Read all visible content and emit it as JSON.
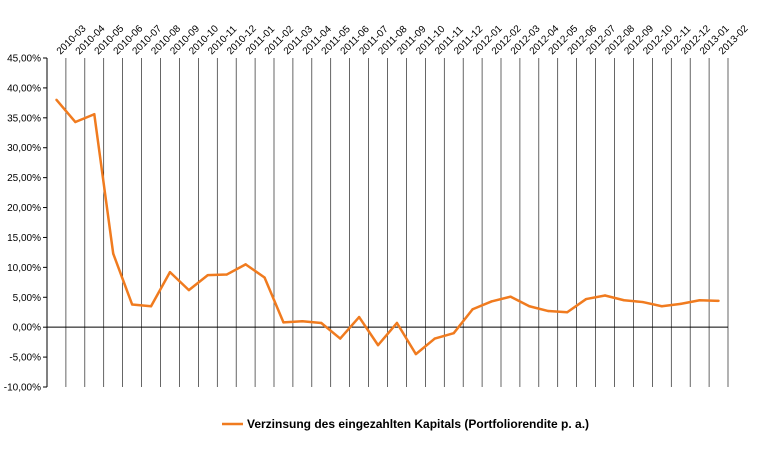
{
  "chart_data": {
    "type": "line",
    "title": "",
    "xlabel": "",
    "ylabel": "",
    "ylim": [
      -10,
      45
    ],
    "y_tick_step": 5,
    "y_tick_labels": [
      "45,00%",
      "40,00%",
      "35,00%",
      "30,00%",
      "25,00%",
      "20,00%",
      "15,00%",
      "10,00%",
      "5,00%",
      "0,00%",
      "-5,00%",
      "-10,00%"
    ],
    "grid": "vertical",
    "legend_position": "bottom",
    "categories": [
      "2010-03",
      "2010-04",
      "2010-05",
      "2010-06",
      "2010-07",
      "2010-08",
      "2010-09",
      "2010-10",
      "2010-11",
      "2010-12",
      "2011-01",
      "2011-02",
      "2011-03",
      "2011-04",
      "2011-05",
      "2011-06",
      "2011-07",
      "2011-08",
      "2011-09",
      "2011-10",
      "2011-11",
      "2011-12",
      "2012-01",
      "2012-02",
      "2012-03",
      "2012-04",
      "2012-05",
      "2012-06",
      "2012-07",
      "2012-08",
      "2012-09",
      "2012-10",
      "2012-11",
      "2012-12",
      "2013-01",
      "2013-02"
    ],
    "series": [
      {
        "name": "Verzinsung des eingezahlten Kapitals (Portfoliorendite p. a.)",
        "color": "#f07b1f",
        "values": [
          38.0,
          34.3,
          35.6,
          12.3,
          3.8,
          3.5,
          9.2,
          6.2,
          8.7,
          8.8,
          10.5,
          8.3,
          0.8,
          1.0,
          0.7,
          -1.9,
          1.7,
          -3.0,
          0.7,
          -4.5,
          -1.9,
          -1.0,
          3.0,
          4.3,
          5.1,
          3.5,
          2.7,
          2.5,
          4.7,
          5.3,
          4.5,
          4.2,
          3.5,
          3.9,
          4.5,
          4.4
        ]
      }
    ]
  }
}
